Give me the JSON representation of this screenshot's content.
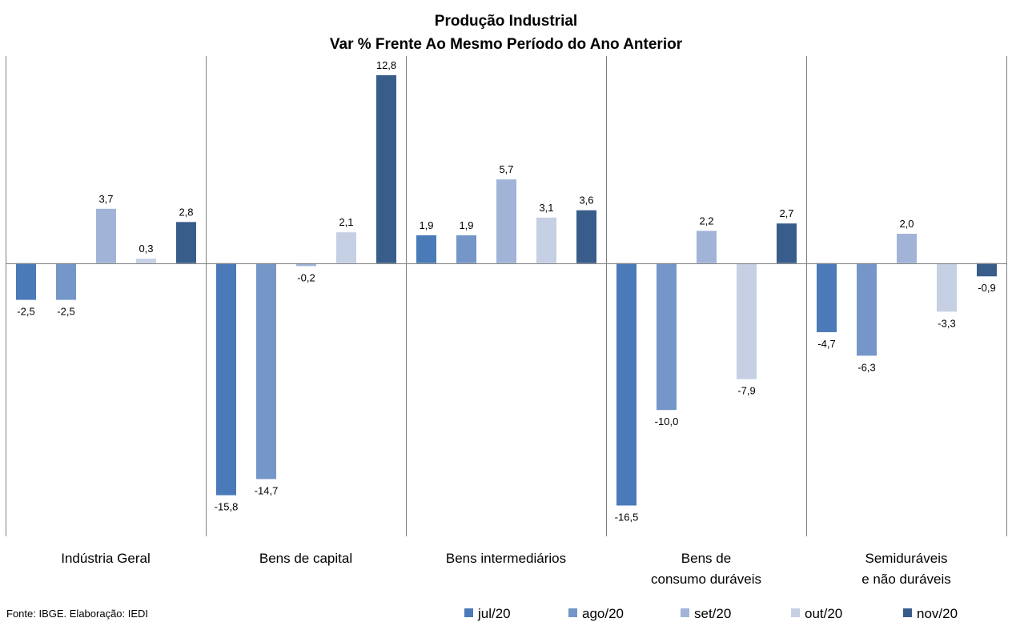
{
  "chart_data": {
    "type": "bar",
    "title": [
      "Produção Industrial",
      "Var % Frente Ao Mesmo Período do Ano Anterior"
    ],
    "categories": [
      [
        "Indústria Geral"
      ],
      [
        "Bens de capital"
      ],
      [
        "Bens intermediários"
      ],
      [
        "Bens de",
        "consumo duráveis"
      ],
      [
        "Semiduráveis",
        "e não duráveis"
      ]
    ],
    "series": [
      {
        "name": "jul/20",
        "color": "#4a7ab8",
        "values": [
          -2.5,
          -15.8,
          1.9,
          -16.5,
          -4.7
        ],
        "labels": [
          "-2,5",
          "-15,8",
          "1,9",
          "-16,5",
          "-4,7"
        ]
      },
      {
        "name": "ago/20",
        "color": "#7596c8",
        "values": [
          -2.5,
          -14.7,
          1.9,
          -10.0,
          -6.3
        ],
        "labels": [
          "-2,5",
          "-14,7",
          "1,9",
          "-10,0",
          "-6,3"
        ]
      },
      {
        "name": "set/20",
        "color": "#a1b4d8",
        "values": [
          3.7,
          -0.2,
          5.7,
          2.2,
          2.0
        ],
        "labels": [
          "3,7",
          "-0,2",
          "5,7",
          "2,2",
          "2,0"
        ]
      },
      {
        "name": "out/20",
        "color": "#c5d0e4",
        "values": [
          0.3,
          2.1,
          3.1,
          -7.9,
          -3.3
        ],
        "labels": [
          "0,3",
          "2,1",
          "3,1",
          "-7,9",
          "-3,3"
        ]
      },
      {
        "name": "nov/20",
        "color": "#385d8b",
        "values": [
          2.8,
          12.8,
          3.6,
          2.7,
          -0.9
        ],
        "labels": [
          "2,8",
          "12,8",
          "3,6",
          "2,7",
          "-0,9"
        ]
      }
    ],
    "ylim": [
      -18.6,
      14.1
    ],
    "grid": false,
    "legend": "bottom-right",
    "source": "Fonte: IBGE. Elaboração: IEDI"
  }
}
